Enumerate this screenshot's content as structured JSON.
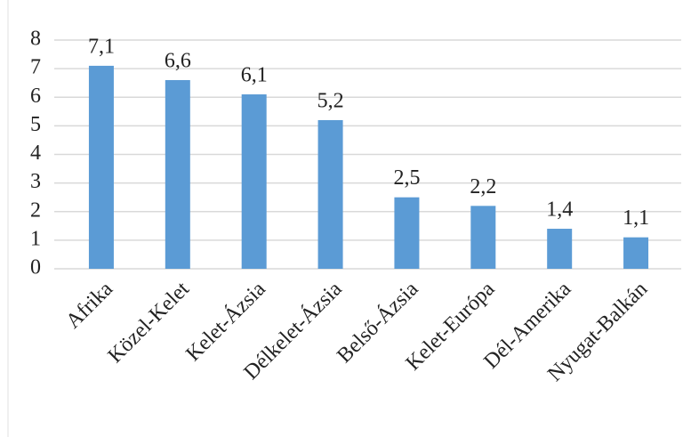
{
  "chart_data": {
    "type": "bar",
    "categories": [
      "Afrika",
      "Közel-Kelet",
      "Kelet-Ázsia",
      "Délkelet-Ázsia",
      "Belső-Ázsia",
      "Kelet-Európa",
      "Dél-Amerika",
      "Nyugat-Balkán"
    ],
    "values": [
      7.1,
      6.6,
      6.1,
      5.2,
      2.5,
      2.2,
      1.4,
      1.1
    ],
    "value_labels": [
      "7,1",
      "6,6",
      "6,1",
      "5,2",
      "2,5",
      "2,2",
      "1,4",
      "1,1"
    ],
    "color": "#5b9bd5",
    "ylim": [
      0,
      8
    ],
    "yticks": [
      0,
      1,
      2,
      3,
      4,
      5,
      6,
      7,
      8
    ],
    "grid": true
  }
}
